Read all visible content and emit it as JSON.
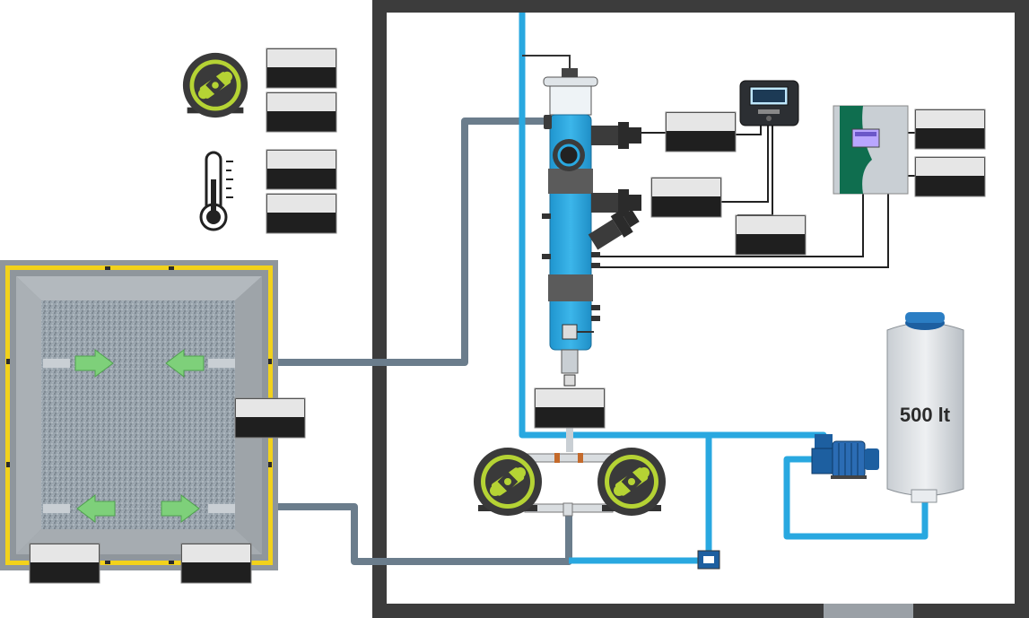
{
  "storage_tank": {
    "capacity_label": "500 lt"
  },
  "colors": {
    "water_pipe": "#29a8e0",
    "drain_pipe": "#6b7d8c",
    "room_wall": "#3c3c3c",
    "reactor_body": "#29a8e0",
    "pump_accent": "#b5d334",
    "arrow_green": "#7ed07a",
    "pool_border": "#f2d21b",
    "controller_green": "#0f6e4f"
  },
  "icons": {
    "pump": "peristaltic-pump-icon",
    "thermometer": "thermometer-icon",
    "controller": "controller-display-icon",
    "control_cabinet": "control-cabinet-icon",
    "water_tank": "water-tank-icon",
    "centrifugal_pump": "centrifugal-pump-icon"
  }
}
